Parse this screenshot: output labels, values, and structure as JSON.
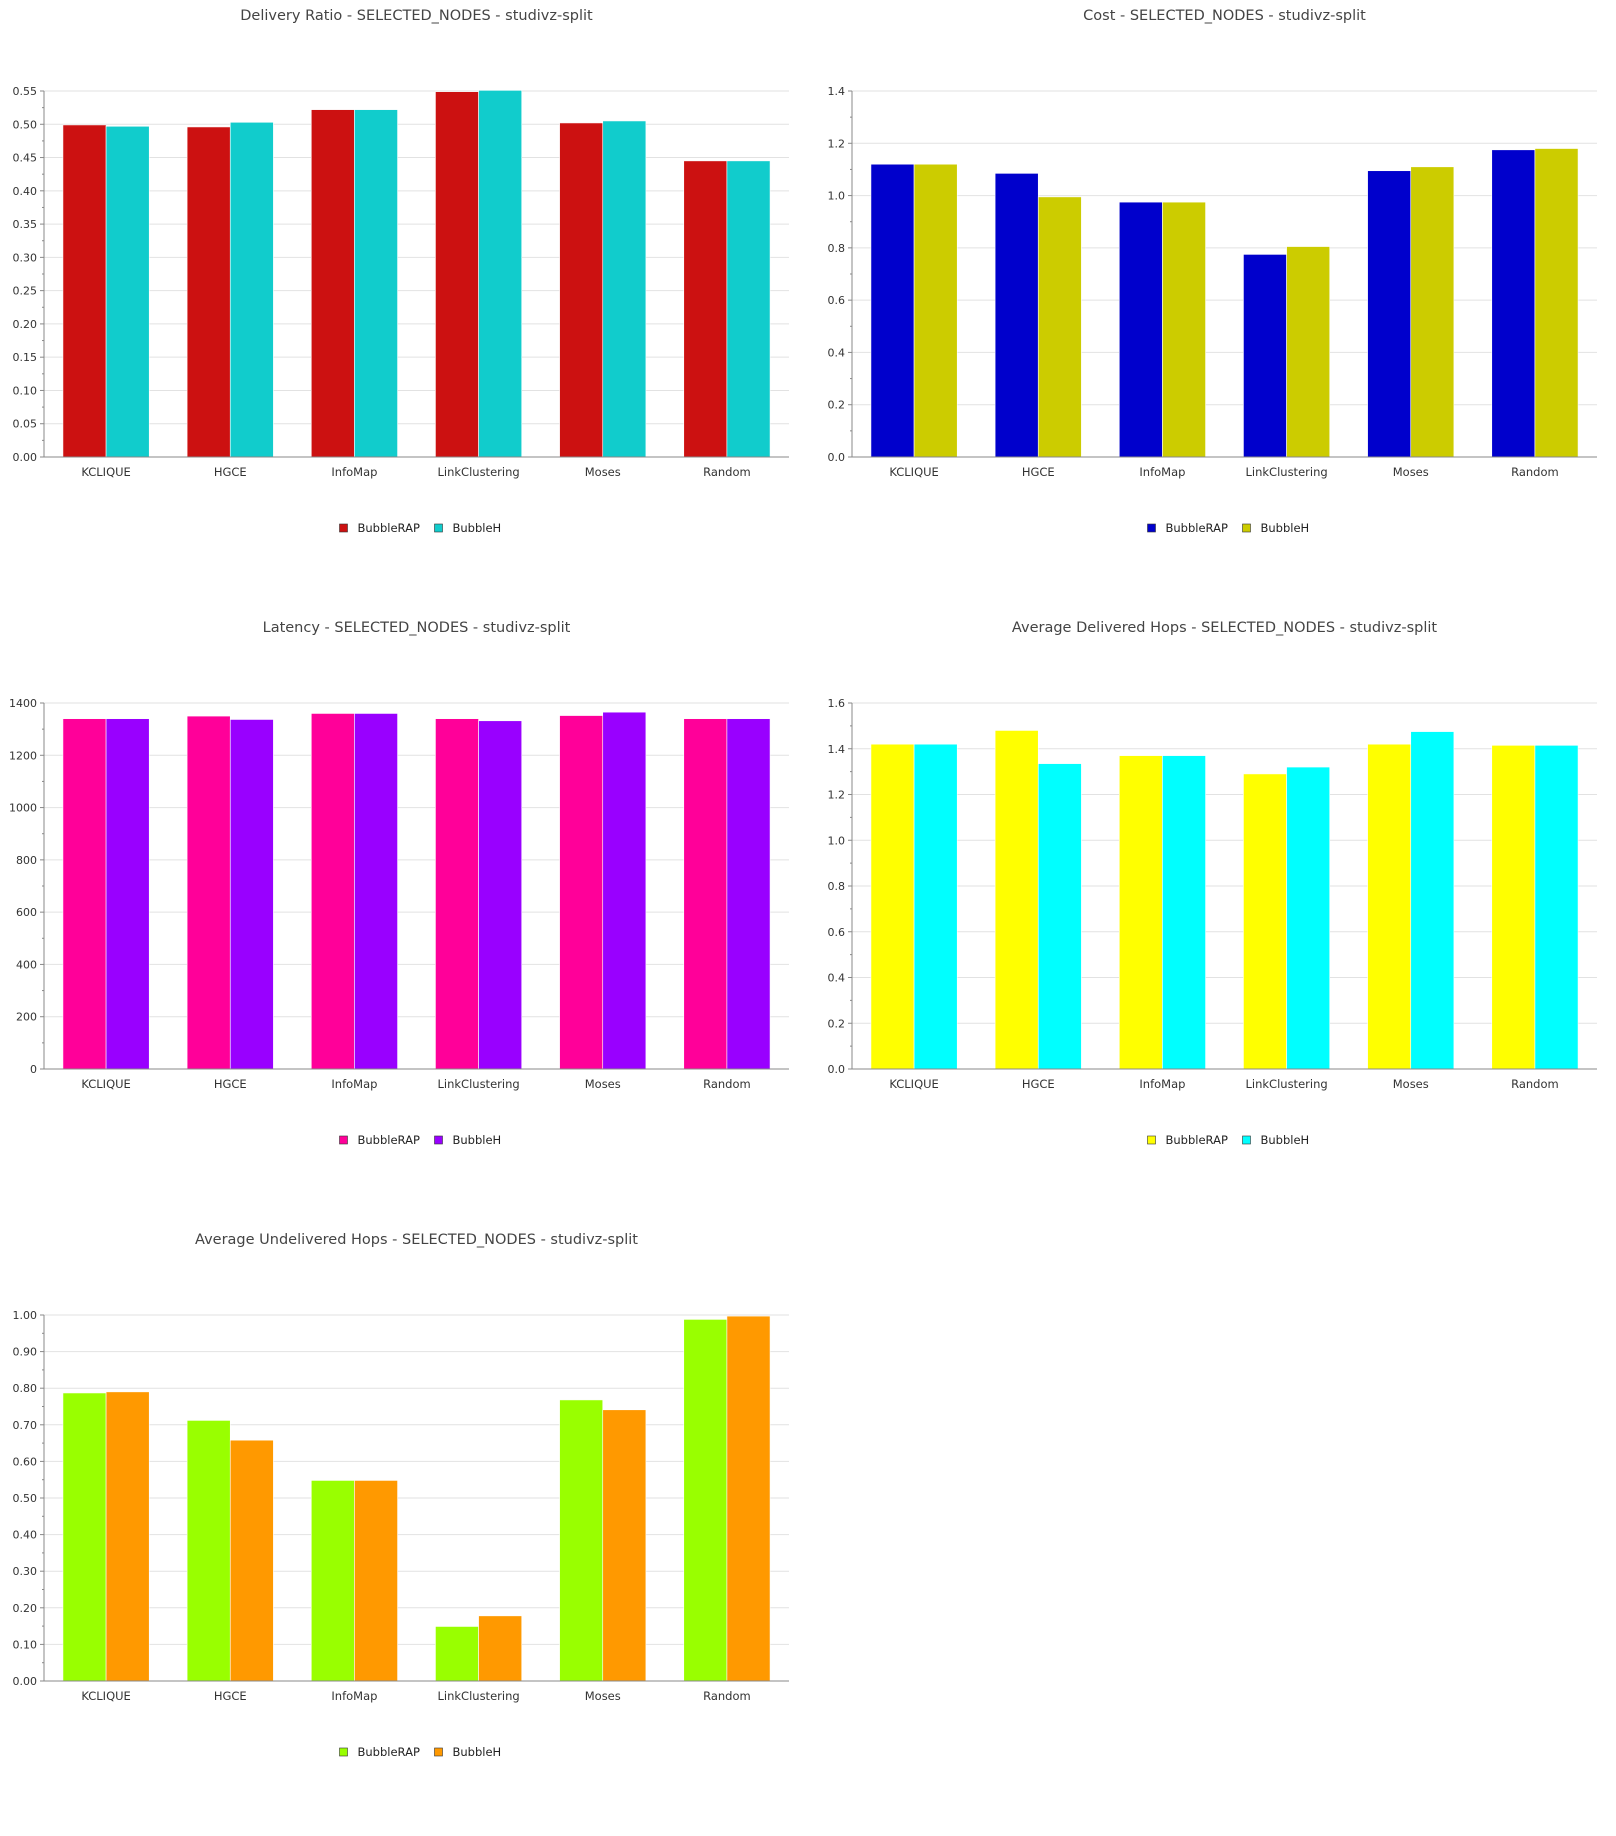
{
  "chart_data": [
    {
      "type": "bar",
      "title": "Delivery Ratio - SELECTED_NODES - studivz-split",
      "categories": [
        "KCLIQUE",
        "HGCE",
        "InfoMap",
        "LinkClustering",
        "Moses",
        "Random"
      ],
      "series": [
        {
          "name": "BubbleRAP",
          "color": "#cc1111",
          "values": [
            0.499,
            0.496,
            0.522,
            0.549,
            0.502,
            0.445
          ]
        },
        {
          "name": "BubbleH",
          "color": "#11cccc",
          "values": [
            0.497,
            0.503,
            0.522,
            0.551,
            0.505,
            0.445
          ]
        }
      ],
      "ylim": [
        0,
        0.55
      ],
      "yticks": [
        "0.00",
        "0.05",
        "0.10",
        "0.15",
        "0.20",
        "0.25",
        "0.30",
        "0.35",
        "0.40",
        "0.45",
        "0.50",
        "0.55"
      ],
      "minor_per_major": 2,
      "grid": true,
      "legend": "bottom-center"
    },
    {
      "type": "bar",
      "title": "Cost - SELECTED_NODES - studivz-split",
      "categories": [
        "KCLIQUE",
        "HGCE",
        "InfoMap",
        "LinkClustering",
        "Moses",
        "Random"
      ],
      "series": [
        {
          "name": "BubbleRAP",
          "color": "#0000cc",
          "values": [
            1.12,
            1.085,
            0.975,
            0.775,
            1.095,
            1.175
          ]
        },
        {
          "name": "BubbleH",
          "color": "#cccc00",
          "values": [
            1.12,
            0.995,
            0.975,
            0.805,
            1.11,
            1.18
          ]
        }
      ],
      "ylim": [
        0,
        1.4
      ],
      "yticks": [
        "0.0",
        "0.2",
        "0.4",
        "0.6",
        "0.8",
        "1.0",
        "1.2",
        "1.4"
      ],
      "minor_per_major": 2,
      "grid": true,
      "legend": "bottom-center"
    },
    {
      "type": "bar",
      "title": "Latency - SELECTED_NODES - studivz-split",
      "categories": [
        "KCLIQUE",
        "HGCE",
        "InfoMap",
        "LinkClustering",
        "Moses",
        "Random"
      ],
      "series": [
        {
          "name": "BubbleRAP",
          "color": "#ff0099",
          "values": [
            1340,
            1350,
            1360,
            1340,
            1352,
            1340
          ]
        },
        {
          "name": "BubbleH",
          "color": "#9900ff",
          "values": [
            1340,
            1337,
            1360,
            1332,
            1365,
            1340
          ]
        }
      ],
      "ylim": [
        0,
        1400
      ],
      "yticks": [
        "0",
        "200",
        "400",
        "600",
        "800",
        "1000",
        "1200",
        "1400"
      ],
      "minor_per_major": 2,
      "grid": true,
      "legend": "bottom-center"
    },
    {
      "type": "bar",
      "title": "Average Delivered Hops - SELECTED_NODES - studivz-split",
      "categories": [
        "KCLIQUE",
        "HGCE",
        "InfoMap",
        "LinkClustering",
        "Moses",
        "Random"
      ],
      "series": [
        {
          "name": "BubbleRAP",
          "color": "#ffff00",
          "values": [
            1.42,
            1.48,
            1.37,
            1.29,
            1.42,
            1.415
          ]
        },
        {
          "name": "BubbleH",
          "color": "#00ffff",
          "values": [
            1.42,
            1.335,
            1.37,
            1.32,
            1.475,
            1.415
          ]
        }
      ],
      "ylim": [
        0,
        1.6
      ],
      "yticks": [
        "0.0",
        "0.2",
        "0.4",
        "0.6",
        "0.8",
        "1.0",
        "1.2",
        "1.4",
        "1.6"
      ],
      "minor_per_major": 2,
      "grid": true,
      "legend": "bottom-center"
    },
    {
      "type": "bar",
      "title": "Average Undelivered Hops - SELECTED_NODES - studivz-split",
      "categories": [
        "KCLIQUE",
        "HGCE",
        "InfoMap",
        "LinkClustering",
        "Moses",
        "Random"
      ],
      "series": [
        {
          "name": "BubbleRAP",
          "color": "#99ff00",
          "values": [
            0.787,
            0.712,
            0.548,
            0.149,
            0.768,
            0.988
          ]
        },
        {
          "name": "BubbleH",
          "color": "#ff9900",
          "values": [
            0.79,
            0.658,
            0.548,
            0.178,
            0.741,
            0.997
          ]
        }
      ],
      "ylim": [
        0,
        1.0
      ],
      "yticks": [
        "0.00",
        "0.10",
        "0.20",
        "0.30",
        "0.40",
        "0.50",
        "0.60",
        "0.70",
        "0.80",
        "0.90",
        "1.00"
      ],
      "minor_per_major": 2,
      "grid": true,
      "legend": "bottom-center"
    }
  ]
}
